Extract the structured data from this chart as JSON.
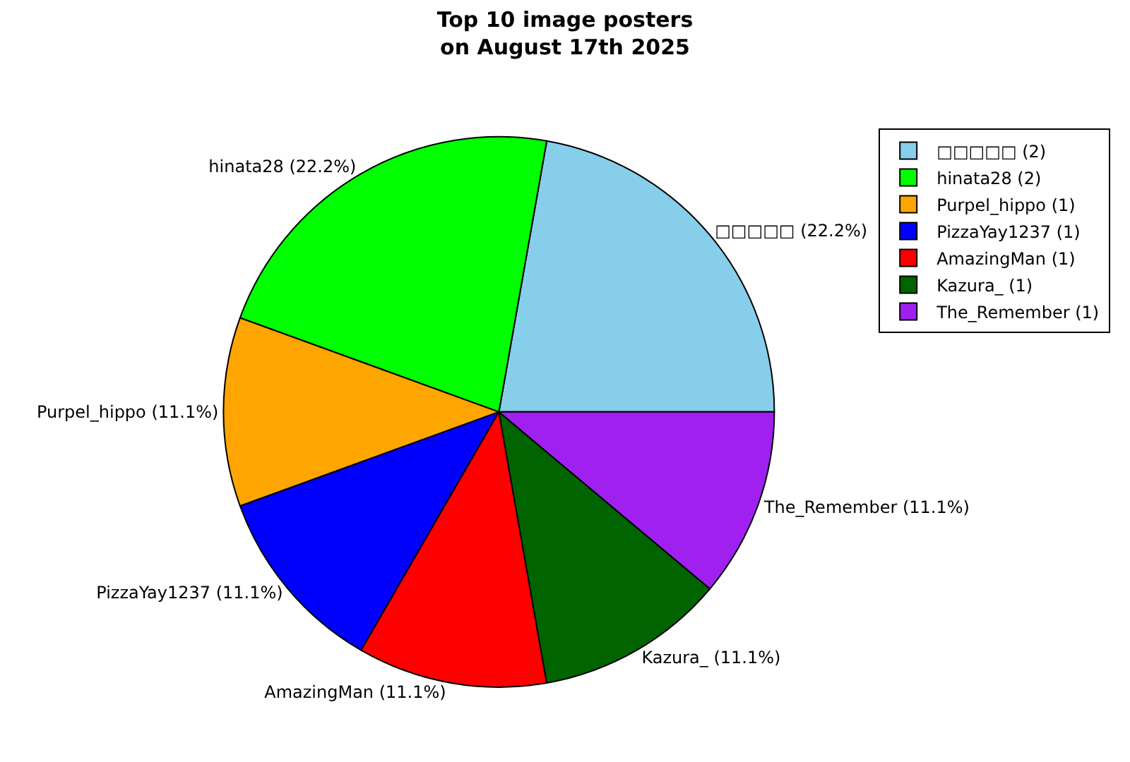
{
  "chart_data": {
    "type": "pie",
    "title": "Top 10 image posters\non August 17th 2025",
    "categories": [
      "□□□□□ (2)",
      "hinata28 (2)",
      "Purpel_hippo (1)",
      "PizzaYay1237 (1)",
      "AmazingMan (1)",
      "Kazura_ (1)",
      "The_Remember (1)"
    ],
    "values": [
      22.2,
      22.2,
      11.1,
      11.1,
      11.1,
      11.1,
      11.1
    ],
    "value_labels": [
      "□□□□□ (22.2%)",
      "hinata28 (22.2%)",
      "Purpel_hippo (11.1%)",
      "PizzaYay1237 (11.1%)",
      "AmazingMan (11.1%)",
      "Kazura_ (11.1%)",
      "The_Remember (11.1%)"
    ],
    "colors": [
      "#87ceeb",
      "#00ff00",
      "#ffa500",
      "#0000ff",
      "#ff0000",
      "#006400",
      "#a020f0"
    ],
    "legend": "top right"
  }
}
